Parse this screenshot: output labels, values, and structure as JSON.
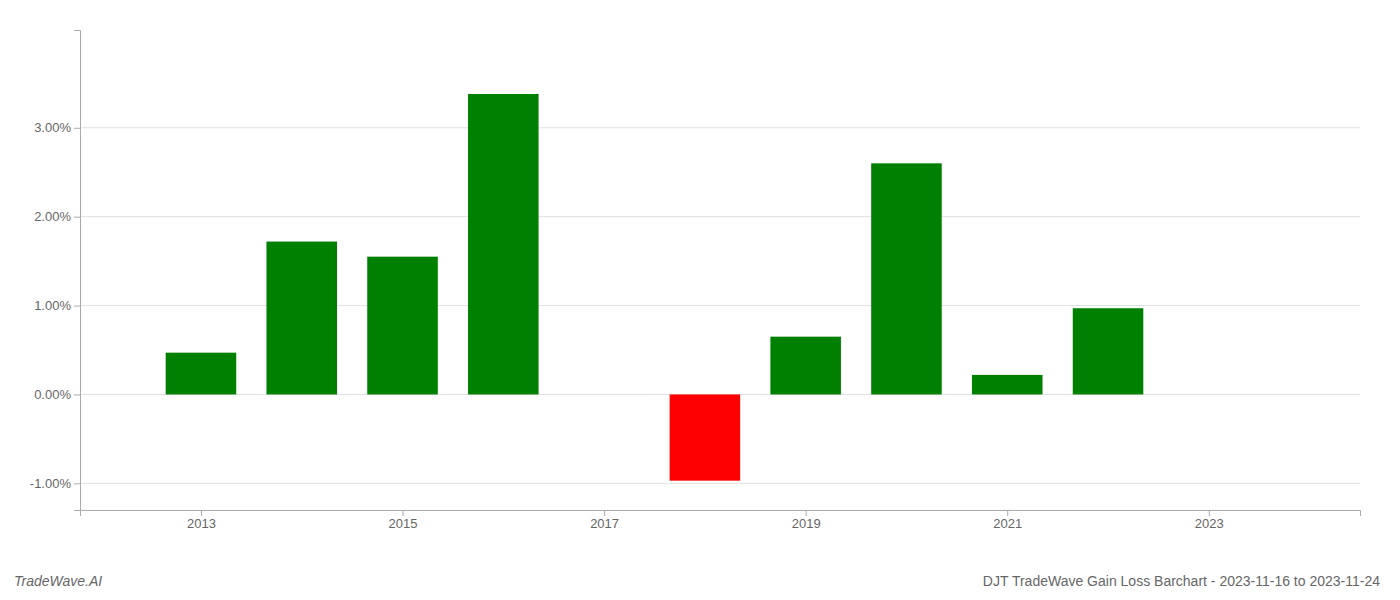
{
  "chart_data": {
    "type": "bar",
    "title": "DJT TradeWave Gain Loss Barchart - 2023-11-16 to 2023-11-24",
    "annotations": [
      "TradeWave.AI"
    ],
    "x": [
      2013,
      2014,
      2015,
      2016,
      2018,
      2019,
      2020,
      2021,
      2022,
      2023
    ],
    "values": [
      0.0047,
      0.0172,
      0.0155,
      0.0338,
      -0.0097,
      0.0065,
      0.026,
      0.0022,
      0.0097,
      0.0
    ],
    "colors": [
      "#008000",
      "#008000",
      "#008000",
      "#008000",
      "#ff0000",
      "#008000",
      "#008000",
      "#008000",
      "#008000",
      "#008000"
    ],
    "xlim": [
      2011.8,
      2024.5
    ],
    "xticks": [
      2013,
      2015,
      2017,
      2019,
      2021,
      2023
    ],
    "ylim": [
      -0.013,
      0.041
    ],
    "yticks": [
      {
        "value": -0.01,
        "label": "-1.00%"
      },
      {
        "value": 0.0,
        "label": "0.00%"
      },
      {
        "value": 0.01,
        "label": "1.00%"
      },
      {
        "value": 0.02,
        "label": "2.00%"
      },
      {
        "value": 0.03,
        "label": "3.00%"
      }
    ],
    "grid": true
  }
}
